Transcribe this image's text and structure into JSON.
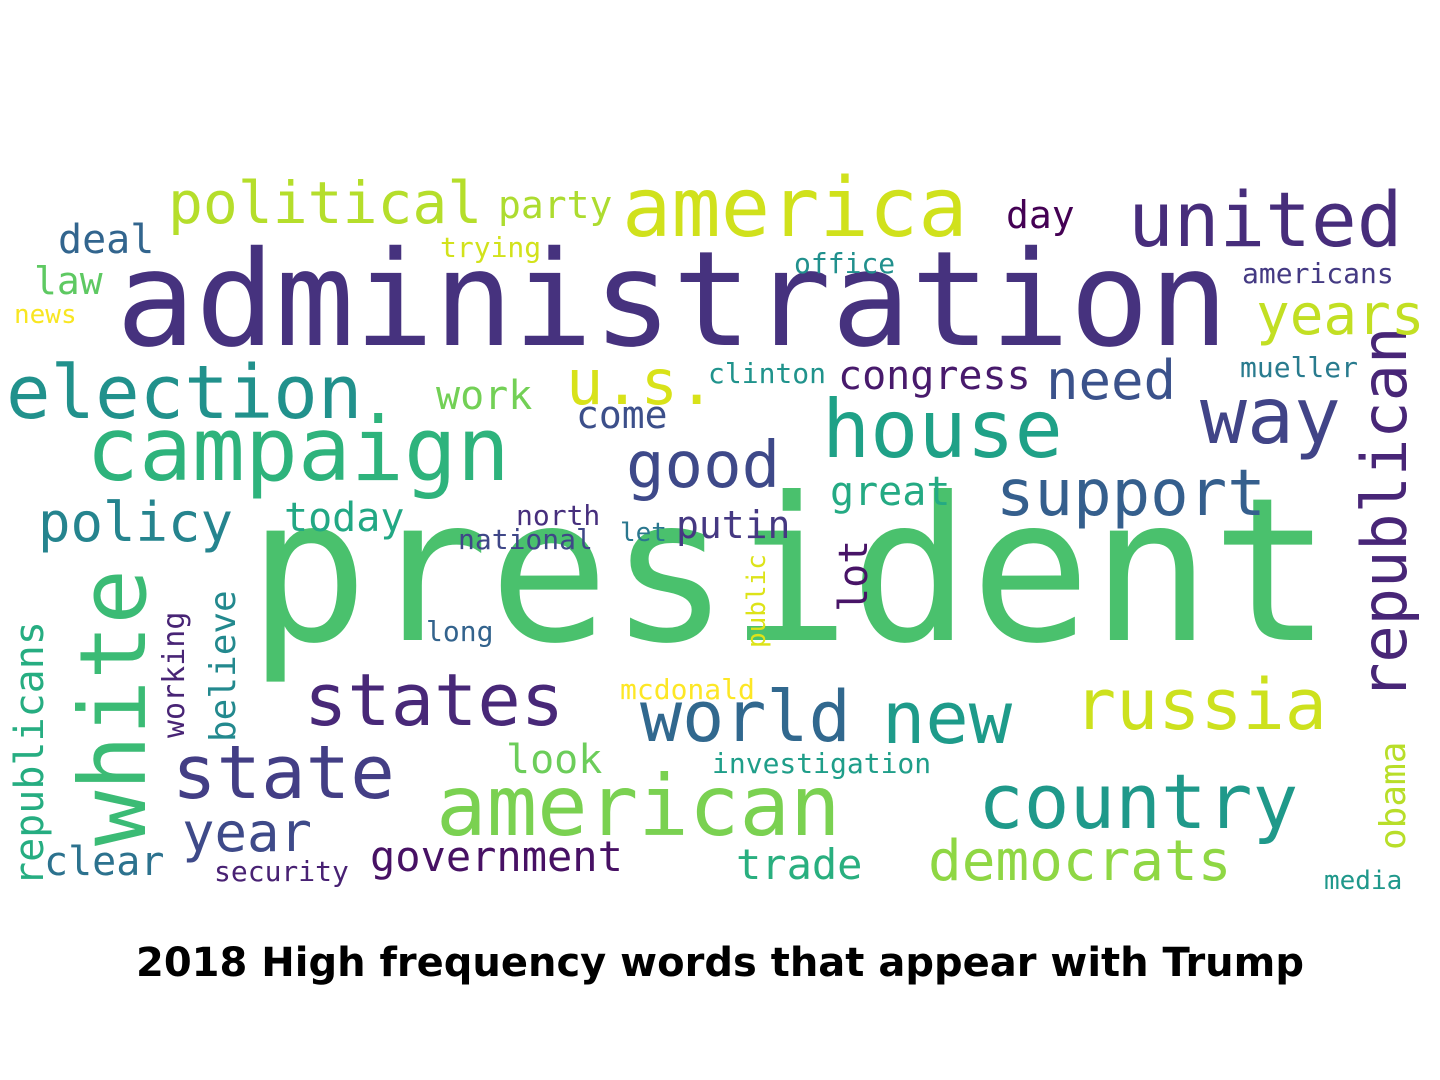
{
  "caption": "2018 High frequency words that appear with Trump",
  "words": [
    {
      "text": "president",
      "color": "#4ac16d"
    },
    {
      "text": "administration",
      "color": "#46327e"
    },
    {
      "text": "campaign",
      "color": "#2eb37c"
    },
    {
      "text": "america",
      "color": "#d0e11c"
    },
    {
      "text": "american",
      "color": "#7ad151"
    },
    {
      "text": "white",
      "color": "#3bbb75"
    },
    {
      "text": "house",
      "color": "#1fa187"
    },
    {
      "text": "united",
      "color": "#472d7b"
    },
    {
      "text": "election",
      "color": "#21918c"
    },
    {
      "text": "country",
      "color": "#1f998a"
    },
    {
      "text": "states",
      "color": "#482878"
    },
    {
      "text": "state",
      "color": "#433e85"
    },
    {
      "text": "way",
      "color": "#414487"
    },
    {
      "text": "russia",
      "color": "#cde11d"
    },
    {
      "text": "world",
      "color": "#31688e"
    },
    {
      "text": "new",
      "color": "#1e9b8a"
    },
    {
      "text": "republican",
      "color": "#482677"
    },
    {
      "text": "political",
      "color": "#b5de2b"
    },
    {
      "text": "support",
      "color": "#355f8d"
    },
    {
      "text": "good",
      "color": "#3e4989"
    },
    {
      "text": "u.s.",
      "color": "#d8e219"
    },
    {
      "text": "policy",
      "color": "#25848e"
    },
    {
      "text": "democrats",
      "color": "#8fd744"
    },
    {
      "text": "years",
      "color": "#c2df23"
    },
    {
      "text": "need",
      "color": "#3b528b"
    },
    {
      "text": "year",
      "color": "#3e4a89"
    },
    {
      "text": "government",
      "color": "#471164"
    },
    {
      "text": "republicans",
      "color": "#26ad81"
    },
    {
      "text": "today",
      "color": "#22a884"
    },
    {
      "text": "congress",
      "color": "#481a6c"
    },
    {
      "text": "trade",
      "color": "#29af7f"
    },
    {
      "text": "party",
      "color": "#addc30"
    },
    {
      "text": "deal",
      "color": "#32658e"
    },
    {
      "text": "day",
      "color": "#440154"
    },
    {
      "text": "clear",
      "color": "#2c728e"
    },
    {
      "text": "look",
      "color": "#6ccd5a"
    },
    {
      "text": "work",
      "color": "#73d056"
    },
    {
      "text": "believe",
      "color": "#23898e"
    },
    {
      "text": "putin",
      "color": "#453882"
    },
    {
      "text": "come",
      "color": "#3c4f8a"
    },
    {
      "text": "great",
      "color": "#24aa83"
    },
    {
      "text": "lot",
      "color": "#481467"
    },
    {
      "text": "law",
      "color": "#5ec962"
    },
    {
      "text": "obama",
      "color": "#b8de29"
    },
    {
      "text": "americans",
      "color": "#443a83"
    },
    {
      "text": "mueller",
      "color": "#297b8e"
    },
    {
      "text": "working",
      "color": "#482475"
    },
    {
      "text": "clinton",
      "color": "#20938c"
    },
    {
      "text": "office",
      "color": "#21908d"
    },
    {
      "text": "investigation",
      "color": "#1f9e89"
    },
    {
      "text": "trying",
      "color": "#d2e21b"
    },
    {
      "text": "north",
      "color": "#472f7d"
    },
    {
      "text": "security",
      "color": "#482173"
    },
    {
      "text": "national",
      "color": "#3f4788"
    },
    {
      "text": "public",
      "color": "#dde318"
    },
    {
      "text": "long",
      "color": "#33638d"
    },
    {
      "text": "let",
      "color": "#2a778e"
    },
    {
      "text": "mcdonald",
      "color": "#fde725"
    },
    {
      "text": "news",
      "color": "#f8e621"
    },
    {
      "text": "media",
      "color": "#1f988b"
    }
  ]
}
